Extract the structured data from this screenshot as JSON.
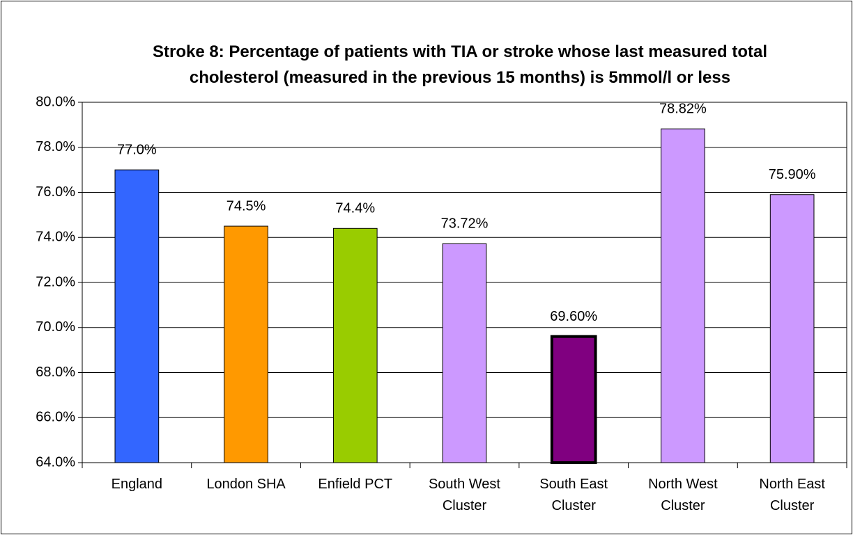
{
  "chart_data": {
    "type": "bar",
    "title": "Stroke 8: Percentage of patients with TIA or stroke whose last measured total cholesterol (measured in the previous 15 months) is 5mmol/l or less",
    "categories": [
      "England",
      "London SHA",
      "Enfield PCT",
      "South West Cluster",
      "South East Cluster",
      "North West Cluster",
      "North East Cluster"
    ],
    "values": [
      77.0,
      74.5,
      74.4,
      73.72,
      69.6,
      78.82,
      75.9
    ],
    "value_labels": [
      "77.0%",
      "74.5%",
      "74.4%",
      "73.72%",
      "69.60%",
      "78.82%",
      "75.90%"
    ],
    "colors": [
      "#3366ff",
      "#ff9900",
      "#99cc00",
      "#cc99ff",
      "#800080",
      "#cc99ff",
      "#cc99ff"
    ],
    "edge_widths": [
      1,
      1,
      1,
      1,
      4,
      1,
      1
    ],
    "ylim": [
      64,
      80
    ],
    "yticks": [
      {
        "value": 64,
        "label": "64.0%"
      },
      {
        "value": 66,
        "label": "66.0%"
      },
      {
        "value": 68,
        "label": "68.0%"
      },
      {
        "value": 70,
        "label": "70.0%"
      },
      {
        "value": 72,
        "label": "72.0%"
      },
      {
        "value": 74,
        "label": "74.0%"
      },
      {
        "value": 76,
        "label": "76.0%"
      },
      {
        "value": 78,
        "label": "78.0%"
      },
      {
        "value": 80,
        "label": "80.0%"
      }
    ],
    "grid": true
  }
}
